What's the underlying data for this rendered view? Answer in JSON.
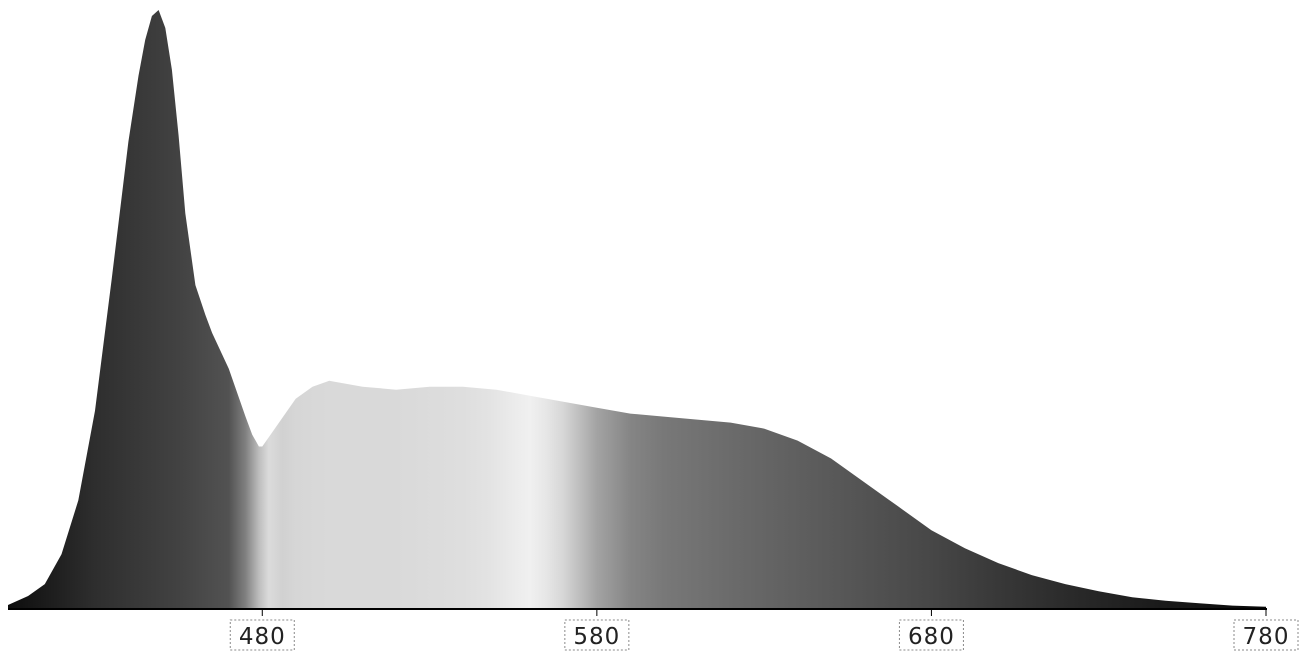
{
  "chart_data": {
    "type": "area",
    "title": "",
    "xlabel": "",
    "ylabel": "",
    "xlim": [
      404,
      780
    ],
    "ylim": [
      0,
      1
    ],
    "grid": false,
    "legend": "none",
    "x_ticks": [
      {
        "value": 480,
        "label": "480"
      },
      {
        "value": 580,
        "label": "580"
      },
      {
        "value": 680,
        "label": "680"
      },
      {
        "value": 780,
        "label": "780"
      }
    ],
    "series": [
      {
        "x": [
          404,
          410,
          415,
          420,
          425,
          430,
          435,
          440,
          443,
          445,
          447,
          449,
          451,
          453,
          455,
          457,
          460,
          463,
          465,
          470,
          475,
          477,
          479,
          480,
          485,
          490,
          495,
          500,
          505,
          510,
          520,
          530,
          540,
          550,
          560,
          570,
          580,
          590,
          600,
          610,
          620,
          630,
          640,
          650,
          660,
          670,
          680,
          690,
          700,
          710,
          720,
          730,
          740,
          750,
          760,
          770,
          780
        ],
        "y": [
          0.005,
          0.02,
          0.04,
          0.09,
          0.18,
          0.33,
          0.55,
          0.78,
          0.89,
          0.95,
          0.99,
          1.0,
          0.97,
          0.9,
          0.79,
          0.66,
          0.54,
          0.49,
          0.46,
          0.4,
          0.32,
          0.29,
          0.27,
          0.27,
          0.31,
          0.35,
          0.37,
          0.38,
          0.375,
          0.37,
          0.365,
          0.37,
          0.37,
          0.365,
          0.355,
          0.345,
          0.335,
          0.325,
          0.32,
          0.315,
          0.31,
          0.3,
          0.28,
          0.25,
          0.21,
          0.17,
          0.13,
          0.1,
          0.075,
          0.055,
          0.04,
          0.028,
          0.018,
          0.012,
          0.008,
          0.004,
          0.002
        ]
      }
    ],
    "fill_brightness": {
      "x": [
        404,
        430,
        455,
        470,
        475,
        479,
        482,
        486,
        490,
        500,
        520,
        540,
        548,
        555,
        560,
        565,
        570,
        575,
        580,
        590,
        600,
        620,
        650,
        680,
        700,
        720,
        740,
        760,
        780
      ],
      "level": [
        0.05,
        0.18,
        0.26,
        0.32,
        0.5,
        0.74,
        0.86,
        0.82,
        0.84,
        0.85,
        0.85,
        0.87,
        0.89,
        0.92,
        0.94,
        0.9,
        0.84,
        0.74,
        0.64,
        0.52,
        0.47,
        0.42,
        0.35,
        0.28,
        0.22,
        0.17,
        0.12,
        0.08,
        0.03
      ]
    },
    "colors": {
      "background": "#ffffff",
      "axis": "#000000",
      "tick_text": "#222222",
      "tick_border": "#8a8a8a"
    }
  }
}
